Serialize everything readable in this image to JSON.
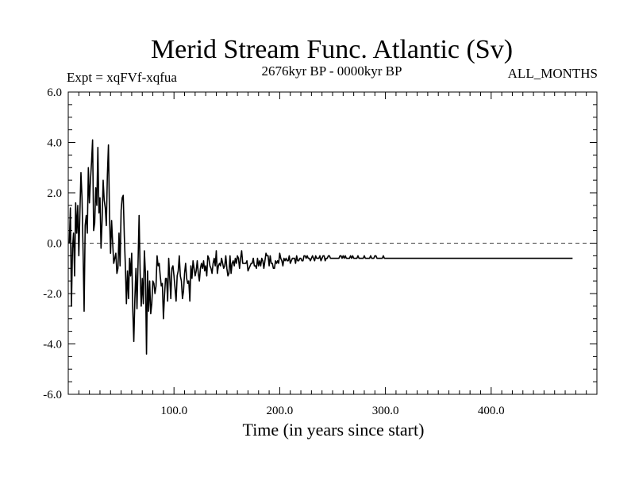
{
  "chart_data": {
    "type": "line",
    "title": "Merid Stream Func. Atlantic (Sv)",
    "subtitle_left": "Expt = xqFVf-xqfua",
    "subtitle_center": "2676kyr BP - 0000kyr BP",
    "subtitle_right": "ALL_MONTHS",
    "xlabel": "Time (in years since start)",
    "ylabel": "",
    "xlim": [
      0,
      500
    ],
    "ylim": [
      -6,
      6
    ],
    "x_ticks": [
      100,
      200,
      300,
      400
    ],
    "x_tick_labels": [
      "100.0",
      "200.0",
      "300.0",
      "400.0"
    ],
    "y_ticks": [
      -6,
      -4,
      -2,
      0,
      2,
      4,
      6
    ],
    "y_tick_labels": [
      "-6.0",
      "-4.0",
      "-2.0",
      "0.0",
      "2.0",
      "4.0",
      "6.0"
    ],
    "reference_line": {
      "y": 0,
      "style": "dashed"
    },
    "grid": false,
    "line_color": "#000000",
    "series": [
      {
        "name": "Merid Stream Func. Atlantic",
        "x_start": 1,
        "x_step": 1,
        "values": [
          0.0,
          1.4,
          -2.5,
          -0.2,
          0.4,
          -1.3,
          1.6,
          0.4,
          1.5,
          -0.5,
          1.2,
          2.8,
          1.8,
          -0.3,
          -2.7,
          0.7,
          1.1,
          0.4,
          3.0,
          1.6,
          2.5,
          3.2,
          4.1,
          0.5,
          0.8,
          2.2,
          1.5,
          3.8,
          1.2,
          1.8,
          -0.2,
          0.9,
          2.5,
          1.7,
          1.4,
          0.7,
          2.7,
          3.9,
          1.1,
          -0.4,
          0.9,
          0.0,
          -0.8,
          -0.6,
          -0.4,
          -1.2,
          -1.0,
          0.4,
          -0.9,
          1.3,
          1.8,
          1.9,
          0.3,
          -0.9,
          -2.4,
          -1.1,
          -2.2,
          -0.6,
          -1.3,
          -0.4,
          -2.6,
          -3.9,
          -2.2,
          -1.0,
          -2.6,
          -0.8,
          1.1,
          -1.2,
          -2.5,
          -1.4,
          -2.4,
          -0.3,
          -1.2,
          -4.4,
          -1.1,
          -2.7,
          -1.5,
          -2.8,
          -2.4,
          -1.5,
          -1.6,
          -2.0,
          -1.7,
          -0.5,
          -0.9,
          -0.8,
          -1.3,
          -1.7,
          -1.6,
          -3.0,
          -2.1,
          -1.4,
          -1.4,
          -2.3,
          -0.6,
          -1.4,
          -2.2,
          -1.0,
          -0.9,
          -1.3,
          -1.8,
          -2.3,
          -1.3,
          -1.1,
          -0.5,
          -1.3,
          -1.5,
          -2.2,
          -1.9,
          -1.2,
          -0.8,
          -1.4,
          -1.6,
          -1.5,
          -2.3,
          -0.9,
          -1.4,
          -0.7,
          -1.0,
          -1.3,
          -1.1,
          -0.7,
          -1.2,
          -1.5,
          -1.0,
          -0.8,
          -1.0,
          -0.7,
          -1.1,
          -0.9,
          -1.3,
          -0.5,
          -0.6,
          -0.9,
          -1.0,
          -1.2,
          -0.8,
          -0.6,
          -0.9,
          -0.3,
          -1.2,
          -0.9,
          -0.8,
          -0.9,
          -0.6,
          -0.8,
          -1.0,
          -0.9,
          -0.5,
          -1.0,
          -1.3,
          -1.2,
          -0.5,
          -1.2,
          -0.8,
          -0.7,
          -0.9,
          -0.6,
          -0.8,
          -0.5,
          -0.6,
          -1.0,
          -0.6,
          -0.3,
          -0.8,
          -0.8,
          -0.8,
          -0.8,
          -0.7,
          -1.1,
          -1.0,
          -0.9,
          -0.8,
          -0.8,
          -0.6,
          -0.9,
          -0.9,
          -1.0,
          -0.6,
          -0.9,
          -0.7,
          -0.9,
          -0.6,
          -0.7,
          -1.0,
          -0.7,
          -0.4,
          -0.5,
          -0.5,
          -0.9,
          -0.5,
          -0.8,
          -0.8,
          -1.0,
          -1.0,
          -0.7,
          -0.8,
          -0.7,
          -0.8,
          -0.4,
          -0.6,
          -0.7,
          -0.9,
          -0.6,
          -0.7,
          -0.6,
          -0.7,
          -0.7,
          -0.5,
          -0.8,
          -0.7,
          -0.6,
          -0.6,
          -0.6,
          -0.8,
          -0.5,
          -0.7,
          -0.7,
          -0.6,
          -0.6,
          -0.7,
          -0.7,
          -0.5,
          -0.5,
          -0.6,
          -0.5,
          -0.6,
          -0.6,
          -0.7,
          -0.6,
          -0.5,
          -0.6,
          -0.7,
          -0.5,
          -0.6,
          -0.6,
          -0.6,
          -0.5,
          -0.7,
          -0.6,
          -0.5,
          -0.5,
          -0.7,
          -0.6,
          -0.6,
          -0.5,
          -0.5,
          -0.6,
          -0.6,
          -0.6,
          -0.6,
          -0.6,
          -0.6,
          -0.6,
          -0.6,
          -0.6,
          -0.5,
          -0.5,
          -0.6,
          -0.5,
          -0.6,
          -0.5,
          -0.6,
          -0.6,
          -0.6,
          -0.6,
          -0.5,
          -0.6,
          -0.5,
          -0.6,
          -0.6,
          -0.6,
          -0.6,
          -0.5,
          -0.6,
          -0.6,
          -0.6,
          -0.6,
          -0.6,
          -0.5,
          -0.6,
          -0.6,
          -0.6,
          -0.6,
          -0.6,
          -0.5,
          -0.6,
          -0.6,
          -0.6,
          -0.5,
          -0.5,
          -0.6,
          -0.6,
          -0.6,
          -0.6,
          -0.6,
          -0.6,
          -0.5,
          -0.6,
          -0.6,
          -0.6,
          -0.6,
          -0.6,
          -0.6,
          -0.6,
          -0.6,
          -0.6,
          -0.6,
          -0.6,
          -0.6,
          -0.6,
          -0.6,
          -0.6,
          -0.6,
          -0.6,
          -0.6,
          -0.6,
          -0.6,
          -0.6,
          -0.6,
          -0.6,
          -0.6,
          -0.6,
          -0.6,
          -0.6,
          -0.6,
          -0.6,
          -0.6,
          -0.6,
          -0.6,
          -0.6,
          -0.6,
          -0.6,
          -0.6,
          -0.6,
          -0.6,
          -0.6,
          -0.6,
          -0.6,
          -0.6,
          -0.6,
          -0.6,
          -0.6,
          -0.6,
          -0.6,
          -0.6,
          -0.6,
          -0.6,
          -0.6,
          -0.6,
          -0.6,
          -0.6,
          -0.6,
          -0.6,
          -0.6,
          -0.6,
          -0.6,
          -0.6,
          -0.6,
          -0.6,
          -0.6,
          -0.6,
          -0.6,
          -0.6,
          -0.6,
          -0.6,
          -0.6,
          -0.6,
          -0.6,
          -0.6,
          -0.6,
          -0.6,
          -0.6,
          -0.6,
          -0.6,
          -0.6,
          -0.6,
          -0.6,
          -0.6,
          -0.6,
          -0.6,
          -0.6,
          -0.6,
          -0.6,
          -0.6,
          -0.6,
          -0.6,
          -0.6,
          -0.6,
          -0.6,
          -0.6,
          -0.6,
          -0.6,
          -0.6,
          -0.6,
          -0.6,
          -0.6,
          -0.6,
          -0.6,
          -0.6,
          -0.6,
          -0.6,
          -0.6,
          -0.6,
          -0.6,
          -0.6,
          -0.6,
          -0.6,
          -0.6,
          -0.6,
          -0.6,
          -0.6,
          -0.6,
          -0.6,
          -0.6,
          -0.6,
          -0.6,
          -0.6,
          -0.6,
          -0.6,
          -0.6,
          -0.6,
          -0.6,
          -0.6,
          -0.6,
          -0.6,
          -0.6,
          -0.6,
          -0.6,
          -0.6,
          -0.6,
          -0.6,
          -0.6,
          -0.6,
          -0.6,
          -0.6,
          -0.6,
          -0.6,
          -0.6,
          -0.6,
          -0.6,
          -0.6,
          -0.6,
          -0.6,
          -0.6,
          -0.6,
          -0.6,
          -0.6,
          -0.6,
          -0.6,
          -0.6,
          -0.6,
          -0.6,
          -0.6,
          -0.6,
          -0.6,
          -0.6,
          -0.6,
          -0.6,
          -0.6,
          -0.6,
          -0.6,
          -0.6,
          -0.6,
          -0.6,
          -0.6,
          -0.6,
          -0.6,
          -0.6,
          -0.6,
          -0.6,
          -0.6,
          -0.6,
          -0.6,
          -0.6,
          -0.6,
          -0.6
        ]
      }
    ]
  }
}
